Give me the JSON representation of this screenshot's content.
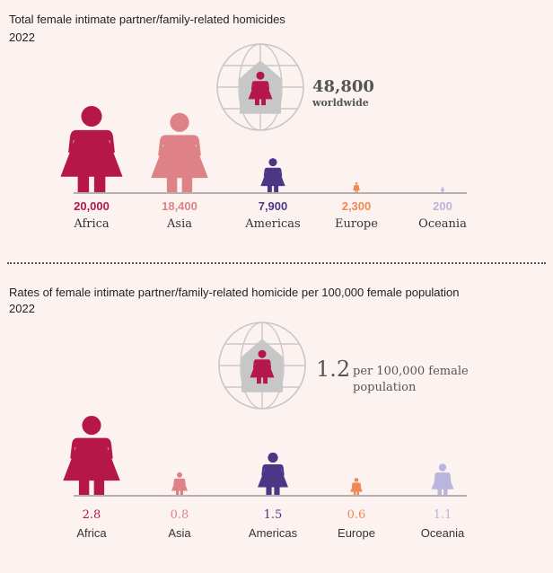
{
  "colors": {
    "Africa": "#b5174a",
    "Asia": "#de8288",
    "Americas": "#4b3786",
    "Europe": "#ef8954",
    "Oceania": "#b9b5dc",
    "house": "#c7c7c7",
    "globe": "#c7c7c7",
    "axis": "#9a9a9a"
  },
  "chart_data": [
    {
      "type": "pictogram",
      "title": "Total female intimate partner/family-related homicides",
      "subtitle": "2022",
      "categories": [
        "Africa",
        "Asia",
        "Americas",
        "Europe",
        "Oceania"
      ],
      "values": [
        20000,
        18400,
        7900,
        2300,
        200
      ],
      "value_labels": [
        "20,000",
        "18,400",
        "7,900",
        "2,300",
        "200"
      ],
      "total": {
        "value": "48,800",
        "label": "worldwide"
      }
    },
    {
      "type": "pictogram",
      "title": "Rates of female intimate partner/family-related homicide per 100,000 female population",
      "subtitle": "2022",
      "categories": [
        "Africa",
        "Asia",
        "Americas",
        "Europe",
        "Oceania"
      ],
      "values": [
        2.8,
        0.8,
        1.5,
        0.6,
        1.1
      ],
      "value_labels": [
        "2.8",
        "0.8",
        "1.5",
        "0.6",
        "1.1"
      ],
      "total": {
        "value": "1.2",
        "label_line1": "per 100,000 female",
        "label_line2": "population"
      }
    }
  ]
}
